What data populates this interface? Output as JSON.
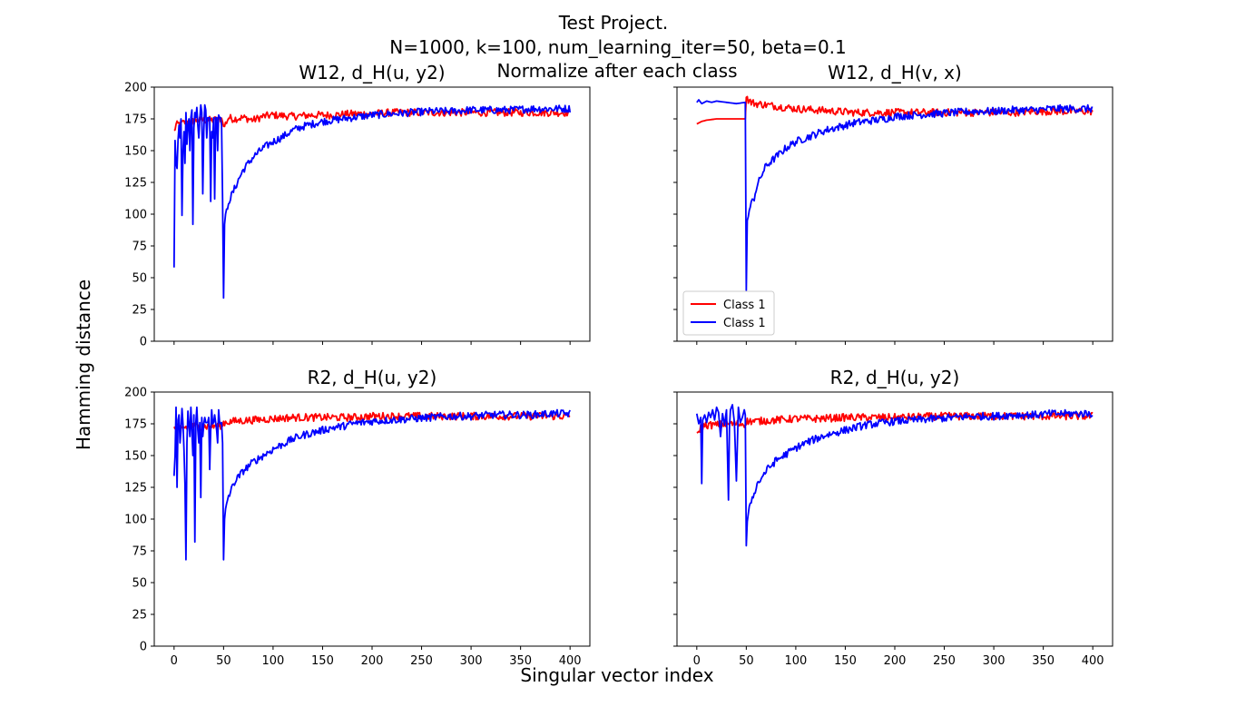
{
  "figure": {
    "title_line1": "Test Project.",
    "title_line2": "N=1000, k=100, num_learning_iter=50, beta=0.1",
    "subtitle": "Normalize after each class",
    "xlabel": "Singular vector index",
    "ylabel": "Hamming distance",
    "colors": {
      "red": "#ff0000",
      "blue": "#0000ff"
    }
  },
  "chart_data": [
    {
      "type": "line",
      "title": "W12, d_H(u, y2)",
      "xlabel": "",
      "ylabel": "",
      "xlim": [
        -20,
        420
      ],
      "ylim": [
        0,
        200
      ],
      "xticks": [
        0,
        50,
        100,
        150,
        200,
        250,
        300,
        350,
        400
      ],
      "yticks": [
        0,
        25,
        50,
        75,
        100,
        125,
        150,
        175,
        200
      ],
      "legend": null,
      "series": [
        {
          "color": "#ff0000",
          "x": [
            0,
            2,
            5,
            10,
            15,
            20,
            25,
            30,
            35,
            40,
            45,
            49,
            50,
            55,
            60,
            70,
            80,
            90,
            100,
            120,
            140,
            160,
            180,
            200,
            220,
            240,
            260,
            280,
            300,
            320,
            340,
            360,
            380,
            400
          ],
          "y": [
            165,
            170,
            171,
            172,
            173,
            173,
            174,
            174,
            174,
            174,
            175,
            175,
            168,
            176,
            175,
            176,
            174,
            177,
            178,
            177,
            178,
            178,
            179,
            179,
            180,
            180,
            180,
            180,
            180,
            180,
            180,
            180,
            180,
            180
          ],
          "noise": 3
        },
        {
          "color": "#0000ff",
          "x": [
            0,
            1,
            2,
            3,
            4,
            5,
            6,
            7,
            8,
            9,
            10,
            11,
            12,
            13,
            14,
            15,
            16,
            17,
            18,
            19,
            20,
            21,
            22,
            23,
            24,
            25,
            26,
            27,
            28,
            29,
            30,
            31,
            32,
            33,
            34,
            35,
            36,
            37,
            38,
            39,
            40,
            41,
            42,
            43,
            44,
            45,
            46,
            47,
            48,
            49,
            50,
            51,
            52,
            53,
            54,
            55,
            57,
            60,
            65,
            70,
            80,
            90,
            100,
            110,
            120,
            130,
            140,
            150,
            160,
            170,
            180,
            190,
            200,
            220,
            240,
            260,
            280,
            300,
            320,
            340,
            360,
            380,
            400
          ],
          "y": [
            58,
            158,
            140,
            136,
            158,
            170,
            160,
            175,
            99,
            150,
            165,
            140,
            180,
            155,
            170,
            175,
            150,
            176,
            182,
            92,
            168,
            180,
            176,
            184,
            170,
            160,
            175,
            186,
            180,
            116,
            165,
            186,
            182,
            160,
            176,
            176,
            176,
            110,
            165,
            160,
            176,
            112,
            176,
            176,
            150,
            178,
            176,
            176,
            170,
            112,
            34,
            92,
            100,
            104,
            104,
            110,
            113,
            118,
            127,
            135,
            145,
            152,
            157,
            161,
            166,
            169,
            171,
            173,
            174,
            175,
            176,
            177,
            178,
            179,
            180,
            181,
            181,
            182,
            182,
            182,
            183,
            183,
            183
          ],
          "noise": 3,
          "noise_from": 55
        }
      ]
    },
    {
      "type": "line",
      "title": "W12, d_H(v, x)",
      "xlabel": "",
      "ylabel": "",
      "xlim": [
        -20,
        420
      ],
      "ylim": [
        0,
        200
      ],
      "xticks": [
        0,
        50,
        100,
        150,
        200,
        250,
        300,
        350,
        400
      ],
      "yticks": [
        0,
        25,
        50,
        75,
        100,
        125,
        150,
        175,
        200
      ],
      "legend": "lower left",
      "series": [
        {
          "name": "Class 1",
          "color": "#ff0000",
          "x": [
            0,
            5,
            10,
            20,
            30,
            40,
            49,
            50,
            52,
            55,
            60,
            70,
            80,
            100,
            120,
            140,
            160,
            180,
            200,
            220,
            240,
            260,
            280,
            300,
            320,
            340,
            360,
            380,
            400
          ],
          "y": [
            171,
            173,
            174,
            175,
            175,
            175,
            175,
            193,
            190,
            188,
            187,
            186,
            185,
            183,
            182,
            181,
            180,
            180,
            180,
            180,
            180,
            180,
            180,
            180,
            180,
            181,
            181,
            181,
            181
          ],
          "noise": 3,
          "noise_from": 50
        },
        {
          "name": "Class 1",
          "color": "#0000ff",
          "x": [
            0,
            2,
            5,
            10,
            15,
            20,
            30,
            40,
            49,
            50,
            51,
            52,
            53,
            55,
            58,
            60,
            65,
            70,
            80,
            90,
            100,
            110,
            120,
            130,
            140,
            150,
            160,
            170,
            180,
            190,
            200,
            220,
            240,
            260,
            280,
            300,
            320,
            340,
            360,
            380,
            400
          ],
          "y": [
            188,
            190,
            187,
            189,
            188,
            189,
            188,
            187,
            188,
            40,
            95,
            98,
            103,
            108,
            113,
            120,
            130,
            138,
            145,
            152,
            157,
            160,
            163,
            166,
            168,
            170,
            172,
            173,
            174,
            175,
            177,
            178,
            179,
            180,
            181,
            181,
            182,
            182,
            183,
            183,
            183
          ],
          "noise": 3,
          "noise_from": 55
        }
      ]
    },
    {
      "type": "line",
      "title": "R2, d_H(u, y2)",
      "xlabel": "",
      "ylabel": "",
      "xlim": [
        -20,
        420
      ],
      "ylim": [
        0,
        200
      ],
      "xticks": [
        0,
        50,
        100,
        150,
        200,
        250,
        300,
        350,
        400
      ],
      "yticks": [
        0,
        25,
        50,
        75,
        100,
        125,
        150,
        175,
        200
      ],
      "legend": null,
      "series": [
        {
          "color": "#ff0000",
          "x": [
            0,
            10,
            20,
            30,
            40,
            49,
            50,
            60,
            80,
            100,
            120,
            130,
            140,
            160,
            180,
            200,
            250,
            300,
            350,
            400
          ],
          "y": [
            172,
            172,
            173,
            173,
            173,
            174,
            176,
            177,
            178,
            179,
            180,
            180,
            180,
            180,
            180,
            181,
            181,
            181,
            181,
            181
          ],
          "noise": 3
        },
        {
          "color": "#0000ff",
          "x": [
            0,
            1,
            2,
            3,
            4,
            5,
            6,
            7,
            8,
            9,
            10,
            11,
            12,
            13,
            14,
            15,
            16,
            17,
            18,
            19,
            20,
            21,
            22,
            23,
            24,
            25,
            26,
            27,
            28,
            29,
            30,
            31,
            32,
            33,
            34,
            35,
            36,
            37,
            38,
            39,
            40,
            41,
            42,
            43,
            44,
            45,
            46,
            47,
            48,
            49,
            50,
            51,
            52,
            53,
            55,
            58,
            60,
            65,
            70,
            80,
            90,
            100,
            110,
            120,
            130,
            140,
            150,
            160,
            170,
            180,
            190,
            200,
            220,
            240,
            260,
            280,
            300,
            320,
            340,
            360,
            380,
            400
          ],
          "y": [
            134,
            150,
            188,
            125,
            178,
            182,
            160,
            170,
            187,
            175,
            155,
            128,
            68,
            160,
            185,
            175,
            165,
            188,
            170,
            150,
            182,
            82,
            176,
            188,
            170,
            160,
            176,
            117,
            180,
            165,
            175,
            180,
            176,
            176,
            176,
            180,
            139,
            170,
            186,
            175,
            176,
            182,
            176,
            170,
            160,
            186,
            176,
            175,
            176,
            160,
            68,
            100,
            108,
            112,
            118,
            123,
            128,
            133,
            138,
            145,
            150,
            155,
            159,
            163,
            166,
            168,
            170,
            172,
            173,
            175,
            176,
            177,
            178,
            179,
            180,
            181,
            181,
            182,
            182,
            182,
            183,
            183
          ],
          "noise": 3,
          "noise_from": 55
        }
      ]
    },
    {
      "type": "line",
      "title": "R2, d_H(u, y2)",
      "xlabel": "",
      "ylabel": "",
      "xlim": [
        -20,
        420
      ],
      "ylim": [
        0,
        200
      ],
      "xticks": [
        0,
        50,
        100,
        150,
        200,
        250,
        300,
        350,
        400
      ],
      "yticks": [
        0,
        25,
        50,
        75,
        100,
        125,
        150,
        175,
        200
      ],
      "legend": null,
      "series": [
        {
          "color": "#ff0000",
          "x": [
            0,
            2,
            5,
            10,
            20,
            30,
            40,
            49,
            50,
            60,
            80,
            100,
            120,
            150,
            200,
            250,
            300,
            350,
            400
          ],
          "y": [
            166,
            170,
            173,
            174,
            174,
            175,
            175,
            175,
            177,
            177,
            178,
            179,
            179,
            180,
            180,
            181,
            181,
            181,
            181
          ],
          "noise": 3
        },
        {
          "color": "#0000ff",
          "x": [
            0,
            2,
            4,
            5,
            6,
            8,
            10,
            12,
            14,
            16,
            18,
            20,
            22,
            24,
            26,
            28,
            30,
            32,
            33,
            34,
            36,
            38,
            40,
            42,
            44,
            46,
            48,
            49,
            50,
            51,
            52,
            53,
            55,
            58,
            60,
            65,
            70,
            80,
            90,
            100,
            110,
            120,
            130,
            140,
            150,
            160,
            170,
            180,
            190,
            200,
            220,
            240,
            260,
            280,
            300,
            320,
            340,
            360,
            380,
            400
          ],
          "y": [
            183,
            175,
            180,
            128,
            178,
            182,
            176,
            184,
            180,
            186,
            178,
            188,
            184,
            165,
            183,
            174,
            186,
            115,
            172,
            186,
            190,
            176,
            130,
            188,
            176,
            180,
            186,
            182,
            79,
            98,
            104,
            110,
            115,
            120,
            126,
            132,
            138,
            146,
            151,
            156,
            160,
            163,
            166,
            168,
            170,
            172,
            174,
            175,
            176,
            177,
            178,
            179,
            180,
            181,
            181,
            182,
            182,
            183,
            183,
            183
          ],
          "noise": 3,
          "noise_from": 55
        }
      ]
    }
  ]
}
